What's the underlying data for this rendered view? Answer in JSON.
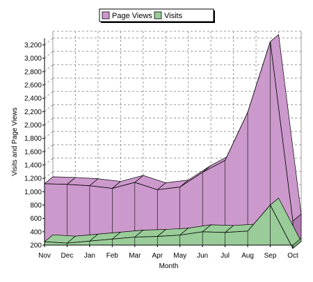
{
  "chart_data": {
    "type": "area",
    "categories": [
      "Nov",
      "Dec",
      "Jan",
      "Feb",
      "Mar",
      "Apr",
      "May",
      "Jun",
      "Jul",
      "Aug",
      "Sep",
      "Oct"
    ],
    "series": [
      {
        "name": "Page Views",
        "values": [
          1120,
          1110,
          1090,
          1050,
          1140,
          1030,
          1070,
          1290,
          1470,
          2190,
          3250,
          560
        ]
      },
      {
        "name": "Visits",
        "values": [
          250,
          230,
          260,
          290,
          320,
          330,
          350,
          400,
          390,
          410,
          800,
          150
        ]
      }
    ],
    "xlabel": "Month",
    "ylabel": "Visits and Page Views",
    "ylim": [
      200,
      3300
    ],
    "yticks": [
      200,
      400,
      600,
      800,
      1000,
      1200,
      1400,
      1600,
      1800,
      2000,
      2200,
      2400,
      2600,
      2800,
      3000,
      3200
    ],
    "ytick_labels": [
      "200",
      "400",
      "600",
      "800",
      "1,000",
      "1,200",
      "1,400",
      "1,600",
      "1,800",
      "2,000",
      "2,200",
      "2,400",
      "2,600",
      "2,800",
      "3,000",
      "3,200"
    ],
    "grid": true,
    "legend_position": "top-center",
    "style": "3d",
    "colors": {
      "page_views": "#cc99cc",
      "page_views_dark": "#b07ab0",
      "visits": "#99cc99",
      "visits_dark": "#7ab07a",
      "grid": "#999999",
      "axis": "#000000"
    }
  }
}
